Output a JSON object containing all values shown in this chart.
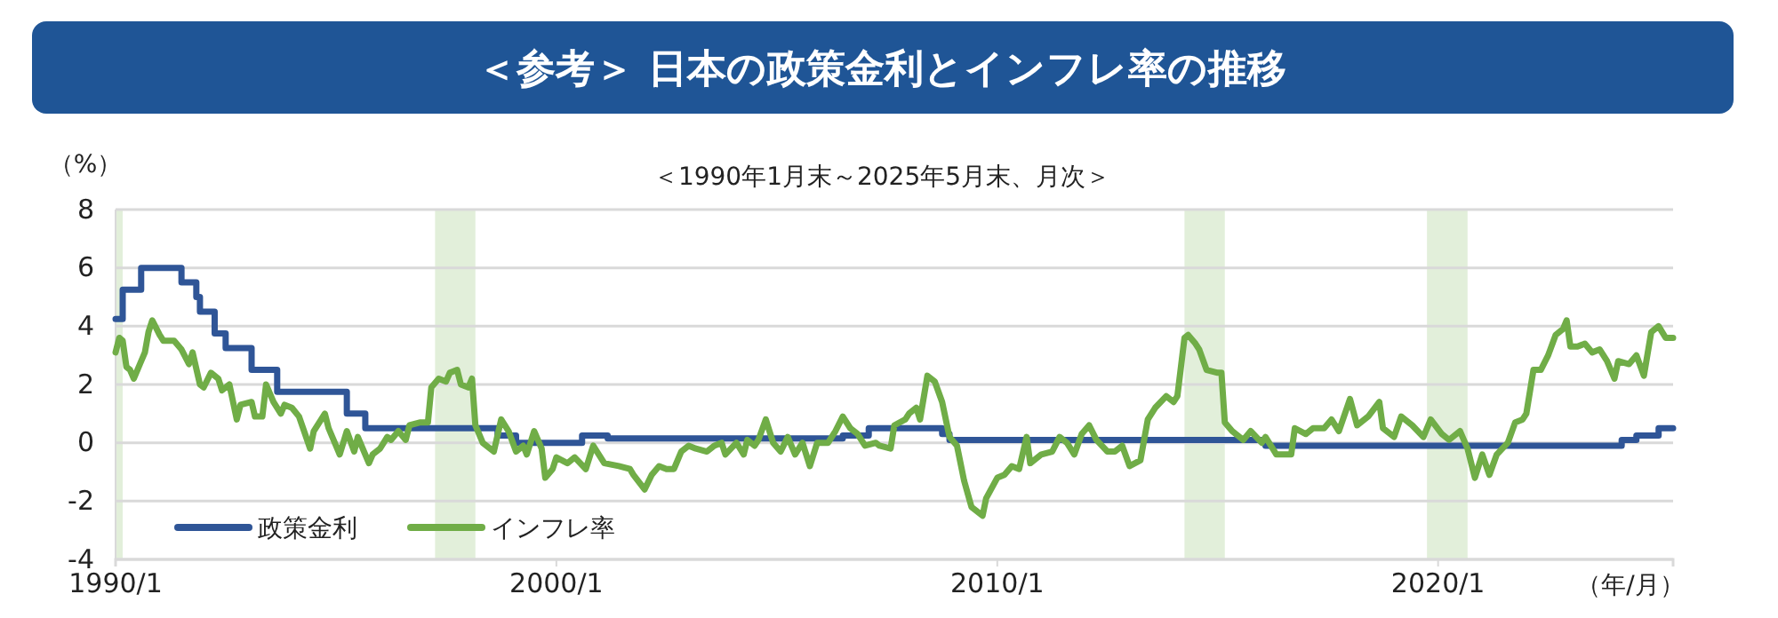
{
  "chart_data": {
    "type": "line",
    "title": "＜参考＞ 日本の政策金利とインフレ率の推移",
    "subtitle": "＜1990年1月末～2025年5月末、月次＞",
    "ylabel": "（%）",
    "xlabel": "（年/月）",
    "xlim": [
      "1990-01",
      "2025-05"
    ],
    "xticks": [
      {
        "value": "1990-01",
        "label": "1990/1"
      },
      {
        "value": "2000-01",
        "label": "2000/1"
      },
      {
        "value": "2010-01",
        "label": "2010/1"
      },
      {
        "value": "2020-01",
        "label": "2020/1"
      }
    ],
    "ylim": [
      -4,
      8
    ],
    "yticks": [
      -4,
      -2,
      0,
      2,
      4,
      6,
      8
    ],
    "grid": "y",
    "legend": "bottom left",
    "bands": [
      {
        "axis": "x",
        "from": "1990-01",
        "to": "1990-03",
        "color": "#e2efda"
      },
      {
        "axis": "x",
        "from": "1997-04",
        "to": "1998-03",
        "color": "#e2efda"
      },
      {
        "axis": "x",
        "from": "2014-04",
        "to": "2015-03",
        "color": "#e2efda"
      },
      {
        "axis": "x",
        "from": "2019-10",
        "to": "2020-09",
        "color": "#e2efda"
      }
    ],
    "series": [
      {
        "name": "政策金利",
        "type": "step",
        "color": "#2f5597",
        "x": [
          "1990-01",
          "1990-03",
          "1990-08",
          "1991-07",
          "1991-11",
          "1991-12",
          "1992-04",
          "1992-07",
          "1993-02",
          "1993-09",
          "1995-04",
          "1995-09",
          "1998-09",
          "1999-02",
          "2000-08",
          "2001-03",
          "2006-07",
          "2007-02",
          "2008-10",
          "2008-12",
          "2016-02",
          "2024-03",
          "2024-07",
          "2025-01",
          "2025-05"
        ],
        "values": [
          4.25,
          5.25,
          6.0,
          5.5,
          5.0,
          4.5,
          3.75,
          3.25,
          2.5,
          1.75,
          1.0,
          0.5,
          0.25,
          0.0,
          0.25,
          0.15,
          0.25,
          0.5,
          0.3,
          0.1,
          -0.1,
          0.1,
          0.25,
          0.5,
          0.5
        ]
      },
      {
        "name": "インフレ率",
        "type": "line",
        "color": "#70ad47",
        "x": [
          "1990-01",
          "1990-02",
          "1990-03",
          "1990-04",
          "1990-05",
          "1990-06",
          "1990-08",
          "1990-09",
          "1990-10",
          "1990-11",
          "1991-01",
          "1991-02",
          "1991-04",
          "1991-05",
          "1991-07",
          "1991-09",
          "1991-10",
          "1991-12",
          "1992-01",
          "1992-03",
          "1992-05",
          "1992-06",
          "1992-08",
          "1992-10",
          "1992-11",
          "1993-02",
          "1993-03",
          "1993-05",
          "1993-06",
          "1993-08",
          "1993-10",
          "1993-11",
          "1994-01",
          "1994-03",
          "1994-06",
          "1994-07",
          "1994-10",
          "1994-11",
          "1995-02",
          "1995-04",
          "1995-06",
          "1995-07",
          "1995-10",
          "1995-11",
          "1996-01",
          "1996-03",
          "1996-04",
          "1996-06",
          "1996-08",
          "1996-09",
          "1996-12",
          "1997-02",
          "1997-03",
          "1997-05",
          "1997-07",
          "1997-08",
          "1997-10",
          "1997-11",
          "1998-01",
          "1998-02",
          "1998-03",
          "1998-05",
          "1998-08",
          "1998-10",
          "1998-12",
          "1999-02",
          "1999-04",
          "1999-05",
          "1999-07",
          "1999-09",
          "1999-10",
          "1999-12",
          "2000-01",
          "2000-04",
          "2000-06",
          "2000-09",
          "2000-11",
          "2001-02",
          "2001-06",
          "2001-09",
          "2001-10",
          "2002-01",
          "2002-03",
          "2002-05",
          "2002-07",
          "2002-09",
          "2002-11",
          "2003-01",
          "2003-03",
          "2003-06",
          "2003-08",
          "2003-10",
          "2003-11",
          "2004-02",
          "2004-04",
          "2004-05",
          "2004-07",
          "2004-08",
          "2004-10",
          "2004-12",
          "2005-02",
          "2005-04",
          "2005-06",
          "2005-08",
          "2005-10",
          "2005-12",
          "2006-03",
          "2006-05",
          "2006-07",
          "2006-09",
          "2006-11",
          "2007-01",
          "2007-04",
          "2007-05",
          "2007-08",
          "2007-09",
          "2007-12",
          "2008-01",
          "2008-03",
          "2008-04",
          "2008-06",
          "2008-08",
          "2008-10",
          "2008-12",
          "2009-02",
          "2009-04",
          "2009-06",
          "2009-09",
          "2009-10",
          "2010-01",
          "2010-03",
          "2010-05",
          "2010-07",
          "2010-09",
          "2010-10",
          "2011-01",
          "2011-04",
          "2011-06",
          "2011-08",
          "2011-10",
          "2011-12",
          "2012-02",
          "2012-04",
          "2012-07",
          "2012-09",
          "2012-11",
          "2013-01",
          "2013-04",
          "2013-06",
          "2013-08",
          "2013-11",
          "2014-01",
          "2014-02",
          "2014-04",
          "2014-05",
          "2014-07",
          "2014-08",
          "2014-10",
          "2015-01",
          "2015-02",
          "2015-03",
          "2015-05",
          "2015-08",
          "2015-10",
          "2016-01",
          "2016-02",
          "2016-05",
          "2016-07",
          "2016-09",
          "2016-10",
          "2017-01",
          "2017-03",
          "2017-06",
          "2017-08",
          "2017-10",
          "2018-01",
          "2018-03",
          "2018-06",
          "2018-09",
          "2018-10",
          "2019-01",
          "2019-03",
          "2019-06",
          "2019-09",
          "2019-11",
          "2020-02",
          "2020-04",
          "2020-07",
          "2020-09",
          "2020-11",
          "2021-01",
          "2021-03",
          "2021-05",
          "2021-08",
          "2021-10",
          "2021-12",
          "2022-01",
          "2022-03",
          "2022-05",
          "2022-07",
          "2022-09",
          "2022-11",
          "2022-12",
          "2023-01",
          "2023-03",
          "2023-05",
          "2023-07",
          "2023-09",
          "2023-11",
          "2024-01",
          "2024-02",
          "2024-05",
          "2024-07",
          "2024-09",
          "2024-11",
          "2025-01",
          "2025-03",
          "2025-05"
        ],
        "values": [
          3.1,
          3.6,
          3.5,
          2.6,
          2.5,
          2.2,
          2.8,
          3.1,
          3.8,
          4.2,
          3.7,
          3.5,
          3.5,
          3.5,
          3.2,
          2.7,
          3.1,
          2.0,
          1.9,
          2.4,
          2.2,
          1.8,
          2.0,
          0.8,
          1.3,
          1.4,
          0.9,
          0.9,
          2.0,
          1.4,
          1.0,
          1.3,
          1.2,
          0.9,
          -0.2,
          0.4,
          1.0,
          0.5,
          -0.4,
          0.4,
          -0.3,
          0.2,
          -0.7,
          -0.4,
          -0.2,
          0.2,
          0.1,
          0.4,
          0.1,
          0.6,
          0.7,
          0.7,
          1.9,
          2.2,
          2.1,
          2.4,
          2.5,
          2.0,
          1.9,
          2.2,
          0.6,
          0.0,
          -0.3,
          0.8,
          0.4,
          -0.3,
          -0.1,
          -0.4,
          0.4,
          -0.2,
          -1.2,
          -0.9,
          -0.5,
          -0.7,
          -0.5,
          -0.9,
          -0.1,
          -0.7,
          -0.8,
          -0.9,
          -1.1,
          -1.6,
          -1.1,
          -0.8,
          -0.9,
          -0.9,
          -0.3,
          -0.1,
          -0.2,
          -0.3,
          -0.1,
          0.0,
          -0.4,
          0.0,
          -0.4,
          0.1,
          -0.1,
          0.1,
          0.8,
          0.0,
          -0.3,
          0.2,
          -0.4,
          0.0,
          -0.8,
          0.0,
          0.0,
          0.4,
          0.9,
          0.5,
          0.3,
          -0.1,
          0.0,
          -0.1,
          -0.2,
          0.6,
          0.8,
          1.0,
          1.2,
          0.8,
          2.3,
          2.1,
          1.4,
          0.2,
          -0.1,
          -1.3,
          -2.2,
          -2.5,
          -1.9,
          -1.2,
          -1.1,
          -0.8,
          -0.9,
          0.2,
          -0.7,
          -0.4,
          -0.3,
          0.2,
          0.0,
          -0.4,
          0.3,
          0.6,
          0.1,
          -0.3,
          -0.3,
          -0.1,
          -0.8,
          -0.6,
          0.8,
          1.2,
          1.6,
          1.4,
          1.6,
          3.6,
          3.7,
          3.4,
          3.2,
          2.5,
          2.4,
          2.4,
          0.7,
          0.4,
          0.1,
          0.4,
          0.0,
          0.2,
          -0.4,
          -0.4,
          -0.4,
          0.5,
          0.3,
          0.5,
          0.5,
          0.8,
          0.4,
          1.5,
          0.6,
          0.9,
          1.4,
          0.5,
          0.2,
          0.9,
          0.6,
          0.2,
          0.8,
          0.3,
          0.1,
          0.4,
          -0.2,
          -1.2,
          -0.4,
          -1.1,
          -0.4,
          0.0,
          0.7,
          0.8,
          1.0,
          2.5,
          2.5,
          3.0,
          3.7,
          3.9,
          4.2,
          3.3,
          3.3,
          3.4,
          3.1,
          3.2,
          2.8,
          2.2,
          2.8,
          2.7,
          3.0,
          2.3,
          3.8,
          4.0,
          3.6,
          3.6
        ]
      }
    ]
  }
}
